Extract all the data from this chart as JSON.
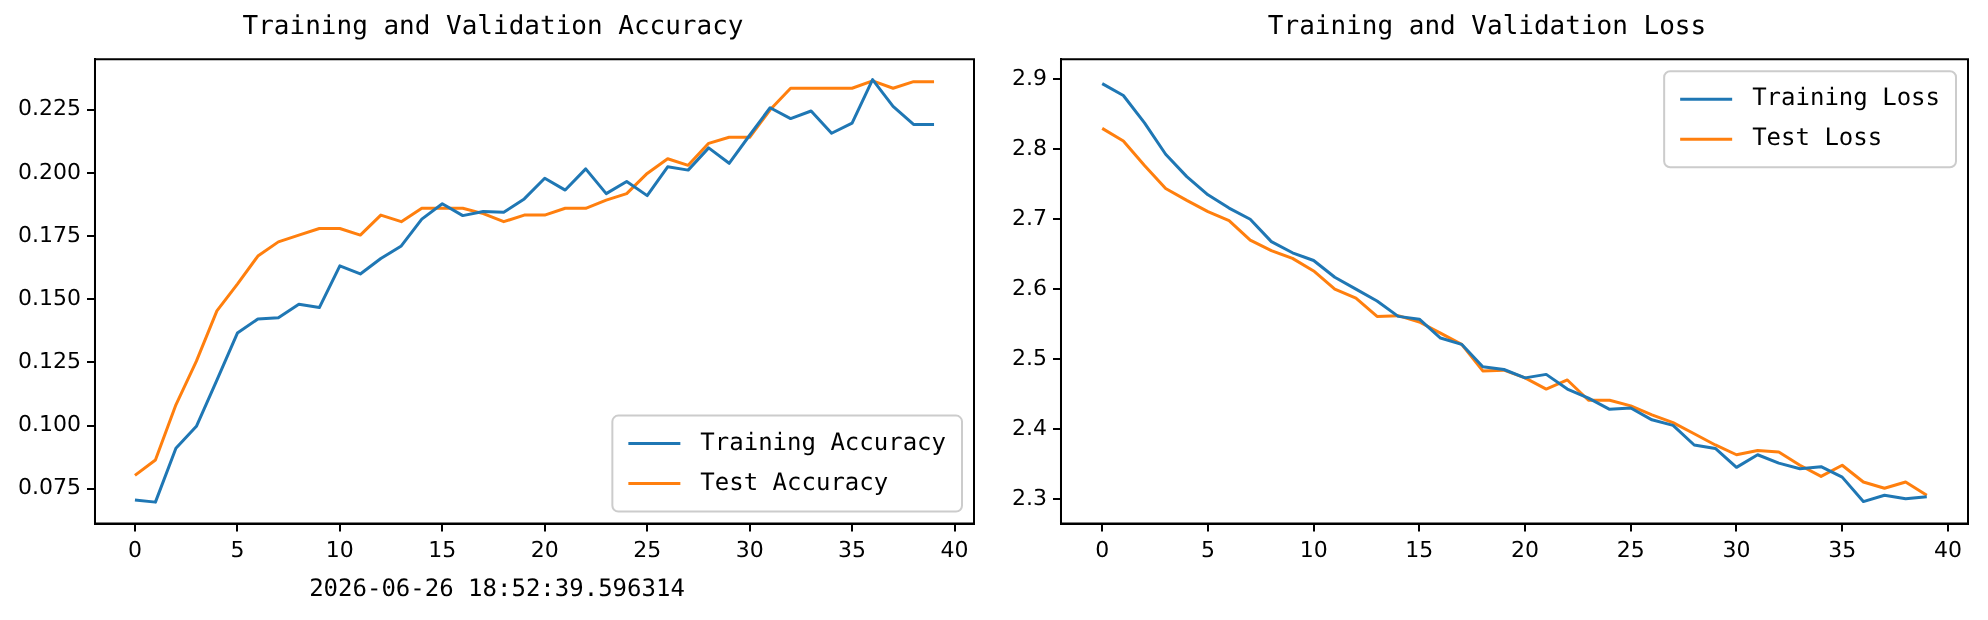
{
  "chart_data": [
    {
      "type": "line",
      "title": "Training and Validation Accuracy",
      "x": [
        0,
        1,
        2,
        3,
        4,
        5,
        6,
        7,
        8,
        9,
        10,
        11,
        12,
        13,
        14,
        15,
        16,
        17,
        18,
        19,
        20,
        21,
        22,
        23,
        24,
        25,
        26,
        27,
        28,
        29,
        30,
        31,
        32,
        33,
        34,
        35,
        36,
        37,
        38,
        39
      ],
      "series": [
        {
          "name": "Training Accuracy",
          "color": "#1f77b4",
          "values": [
            0.0705,
            0.0697,
            0.091,
            0.0997,
            0.118,
            0.1366,
            0.1422,
            0.1427,
            0.148,
            0.1467,
            0.1632,
            0.16,
            0.1661,
            0.1711,
            0.1817,
            0.1878,
            0.1831,
            0.1847,
            0.1844,
            0.1897,
            0.1979,
            0.1932,
            0.2016,
            0.1918,
            0.1966,
            0.191,
            0.2024,
            0.2011,
            0.2099,
            0.2038,
            0.2149,
            0.2258,
            0.2215,
            0.2245,
            0.2157,
            0.2197,
            0.2369,
            0.2263,
            0.2192,
            0.2192
          ]
        },
        {
          "name": "Test Accuracy",
          "color": "#ff7f0e",
          "values": [
            0.0803,
            0.0864,
            0.1082,
            0.1255,
            0.1454,
            0.156,
            0.1671,
            0.1727,
            0.1754,
            0.178,
            0.178,
            0.1754,
            0.1833,
            0.1807,
            0.186,
            0.186,
            0.186,
            0.1839,
            0.1807,
            0.1833,
            0.1833,
            0.186,
            0.186,
            0.1892,
            0.1918,
            0.1998,
            0.2056,
            0.203,
            0.2117,
            0.2141,
            0.2141,
            0.225,
            0.2335,
            0.2335,
            0.2335,
            0.2335,
            0.2364,
            0.2335,
            0.2361,
            0.2361
          ]
        }
      ],
      "xlim": [
        -1.95,
        40.95
      ],
      "xticks": [
        0,
        5,
        10,
        15,
        20,
        25,
        30,
        35,
        40
      ],
      "ylim": [
        0.0612,
        0.245
      ],
      "yticks": [
        {
          "value": 0.075,
          "label": "0.075"
        },
        {
          "value": 0.1,
          "label": "0.100"
        },
        {
          "value": 0.125,
          "label": "0.125"
        },
        {
          "value": 0.15,
          "label": "0.150"
        },
        {
          "value": 0.175,
          "label": "0.175"
        },
        {
          "value": 0.2,
          "label": "0.200"
        },
        {
          "value": 0.225,
          "label": "0.225"
        }
      ],
      "legend": "bottom right",
      "annotations": [
        "2026-06-26 18:52:39.596314"
      ]
    },
    {
      "type": "line",
      "title": "Training and Validation Loss",
      "x": [
        0,
        1,
        2,
        3,
        4,
        5,
        6,
        7,
        8,
        9,
        10,
        11,
        12,
        13,
        14,
        15,
        16,
        17,
        18,
        19,
        20,
        21,
        22,
        23,
        24,
        25,
        26,
        27,
        28,
        29,
        30,
        31,
        32,
        33,
        34,
        35,
        36,
        37,
        38,
        39
      ],
      "series": [
        {
          "name": "Training Loss",
          "color": "#1f77b4",
          "values": [
            2.894,
            2.877,
            2.838,
            2.793,
            2.761,
            2.735,
            2.716,
            2.7,
            2.668,
            2.652,
            2.641,
            2.617,
            2.6,
            2.583,
            2.561,
            2.557,
            2.53,
            2.521,
            2.489,
            2.485,
            2.473,
            2.478,
            2.457,
            2.444,
            2.428,
            2.43,
            2.413,
            2.405,
            2.377,
            2.372,
            2.345,
            2.363,
            2.351,
            2.343,
            2.346,
            2.331,
            2.296,
            2.305,
            2.3,
            2.303
          ]
        },
        {
          "name": "Test Loss",
          "color": "#ff7f0e",
          "values": [
            2.83,
            2.812,
            2.777,
            2.744,
            2.727,
            2.711,
            2.698,
            2.67,
            2.655,
            2.644,
            2.626,
            2.6,
            2.587,
            2.561,
            2.562,
            2.553,
            2.537,
            2.521,
            2.483,
            2.484,
            2.473,
            2.457,
            2.47,
            2.441,
            2.441,
            2.433,
            2.42,
            2.409,
            2.393,
            2.377,
            2.363,
            2.369,
            2.367,
            2.348,
            2.332,
            2.348,
            2.324,
            2.315,
            2.324,
            2.305
          ]
        }
      ],
      "xlim": [
        -1.95,
        40.95
      ],
      "xticks": [
        0,
        5,
        10,
        15,
        20,
        25,
        30,
        35,
        40
      ],
      "ylim": [
        2.2645,
        2.929
      ],
      "yticks": [
        2.3,
        2.4,
        2.5,
        2.6,
        2.7,
        2.8,
        2.9
      ],
      "legend": "top right"
    }
  ]
}
